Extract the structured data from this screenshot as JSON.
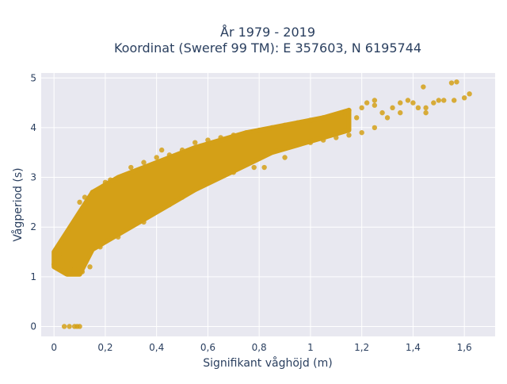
{
  "chart_data": {
    "type": "scatter",
    "title_line1": "År 1979 - 2019",
    "title_line2": "Koordinat (Sweref 99 TM): E 357603, N 6195744",
    "xlabel": "Signifikant våghöjd (m)",
    "ylabel": "Vågperiod (s)",
    "xlim": [
      -0.05,
      1.72
    ],
    "ylim": [
      -0.2,
      5.1
    ],
    "x_ticks": [
      0,
      0.2,
      0.4,
      0.6,
      0.8,
      1,
      1.2,
      1.4,
      1.6
    ],
    "x_tick_labels": [
      "0",
      "0,2",
      "0,4",
      "0,6",
      "0,8",
      "1",
      "1,2",
      "1,4",
      "1,6"
    ],
    "y_ticks": [
      0,
      1,
      2,
      3,
      4,
      5
    ],
    "y_tick_labels": [
      "0",
      "1",
      "2",
      "3",
      "4",
      "5"
    ],
    "grid": true,
    "marker_color": "#d4a017",
    "background_color": "#e8e8f0",
    "series": [
      {
        "dense_band": {
          "lower": [
            [
              0.0,
              1.2
            ],
            [
              0.05,
              1.05
            ],
            [
              0.1,
              1.05
            ],
            [
              0.15,
              1.55
            ],
            [
              0.25,
              1.85
            ],
            [
              0.35,
              2.15
            ],
            [
              0.45,
              2.45
            ],
            [
              0.55,
              2.75
            ],
            [
              0.65,
              3.0
            ],
            [
              0.75,
              3.25
            ],
            [
              0.85,
              3.5
            ],
            [
              0.95,
              3.65
            ],
            [
              1.05,
              3.8
            ],
            [
              1.15,
              3.95
            ]
          ],
          "upper": [
            [
              0.0,
              1.5
            ],
            [
              0.05,
              1.9
            ],
            [
              0.1,
              2.3
            ],
            [
              0.15,
              2.7
            ],
            [
              0.25,
              3.0
            ],
            [
              0.35,
              3.2
            ],
            [
              0.45,
              3.4
            ],
            [
              0.55,
              3.6
            ],
            [
              0.65,
              3.75
            ],
            [
              0.75,
              3.9
            ],
            [
              0.85,
              4.0
            ],
            [
              0.95,
              4.1
            ],
            [
              1.05,
              4.2
            ],
            [
              1.15,
              4.35
            ]
          ]
        },
        "points": [
          [
            0.04,
            0.0
          ],
          [
            0.06,
            0.0
          ],
          [
            0.08,
            0.0
          ],
          [
            0.09,
            0.0
          ],
          [
            0.1,
            0.0
          ],
          [
            0.0,
            1.25
          ],
          [
            0.02,
            1.45
          ],
          [
            0.05,
            1.3
          ],
          [
            0.08,
            1.15
          ],
          [
            0.11,
            1.1
          ],
          [
            0.14,
            1.2
          ],
          [
            0.1,
            2.5
          ],
          [
            0.12,
            2.6
          ],
          [
            0.15,
            2.7
          ],
          [
            0.2,
            2.9
          ],
          [
            0.22,
            2.95
          ],
          [
            0.3,
            3.2
          ],
          [
            0.35,
            3.3
          ],
          [
            0.4,
            3.4
          ],
          [
            0.42,
            3.55
          ],
          [
            0.45,
            3.45
          ],
          [
            0.5,
            3.55
          ],
          [
            0.55,
            3.7
          ],
          [
            0.6,
            3.75
          ],
          [
            0.65,
            3.8
          ],
          [
            0.7,
            3.85
          ],
          [
            0.75,
            3.9
          ],
          [
            0.8,
            3.95
          ],
          [
            0.85,
            4.0
          ],
          [
            0.9,
            4.05
          ],
          [
            0.95,
            4.1
          ],
          [
            1.0,
            4.15
          ],
          [
            1.05,
            4.2
          ],
          [
            1.1,
            4.25
          ],
          [
            1.12,
            4.3
          ],
          [
            1.15,
            4.35
          ],
          [
            1.18,
            4.2
          ],
          [
            1.2,
            4.4
          ],
          [
            1.22,
            4.5
          ],
          [
            1.25,
            4.45
          ],
          [
            1.28,
            4.3
          ],
          [
            1.3,
            4.2
          ],
          [
            1.32,
            4.4
          ],
          [
            1.35,
            4.5
          ],
          [
            1.38,
            4.55
          ],
          [
            1.4,
            4.5
          ],
          [
            1.42,
            4.4
          ],
          [
            1.35,
            4.3
          ],
          [
            1.25,
            4.55
          ],
          [
            1.45,
            4.4
          ],
          [
            1.45,
            4.3
          ],
          [
            1.44,
            4.82
          ],
          [
            1.48,
            4.5
          ],
          [
            1.5,
            4.55
          ],
          [
            1.52,
            4.55
          ],
          [
            1.55,
            4.9
          ],
          [
            1.57,
            4.92
          ],
          [
            1.56,
            4.55
          ],
          [
            1.6,
            4.6
          ],
          [
            1.62,
            4.68
          ],
          [
            0.6,
            2.9
          ],
          [
            0.7,
            3.1
          ],
          [
            0.78,
            3.2
          ],
          [
            0.82,
            3.2
          ],
          [
            0.9,
            3.4
          ],
          [
            0.5,
            2.6
          ],
          [
            0.45,
            2.45
          ],
          [
            0.35,
            2.1
          ],
          [
            0.25,
            1.8
          ],
          [
            0.18,
            1.6
          ],
          [
            1.0,
            3.7
          ],
          [
            1.05,
            3.75
          ],
          [
            1.1,
            3.8
          ],
          [
            1.15,
            3.85
          ],
          [
            1.2,
            3.9
          ],
          [
            1.25,
            4.0
          ]
        ]
      }
    ]
  }
}
